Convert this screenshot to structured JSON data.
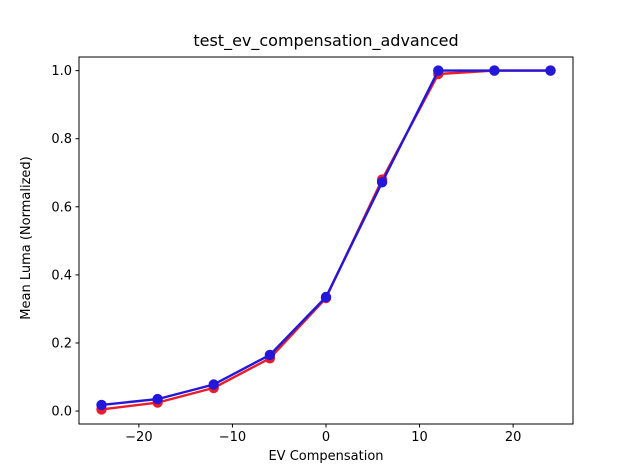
{
  "chart_data": {
    "type": "line",
    "title": "test_ev_compensation_advanced",
    "xlabel": "EV Compensation",
    "ylabel": "Mean Luma (Normalized)",
    "x": [
      -24,
      -18,
      -12,
      -6,
      0,
      6,
      12,
      18,
      24
    ],
    "series": [
      {
        "name": "red-series",
        "color": "#ea1c2c",
        "marker": "circle",
        "values": [
          0.005,
          0.025,
          0.068,
          0.155,
          0.332,
          0.68,
          0.99,
          1.0,
          1.0
        ]
      },
      {
        "name": "blue-series",
        "color": "#2318d9",
        "marker": "circle",
        "values": [
          0.018,
          0.035,
          0.078,
          0.165,
          0.335,
          0.672,
          1.0,
          1.0,
          1.0
        ]
      }
    ],
    "xlim": [
      -26.4,
      26.4
    ],
    "ylim": [
      -0.038,
      1.04
    ],
    "xticks": {
      "values": [
        -20,
        -10,
        0,
        10,
        20
      ],
      "labels": [
        "−20",
        "−10",
        "0",
        "10",
        "20"
      ]
    },
    "yticks": {
      "values": [
        0.0,
        0.2,
        0.4,
        0.6,
        0.8,
        1.0
      ],
      "labels": [
        "0.0",
        "0.2",
        "0.4",
        "0.6",
        "0.8",
        "1.0"
      ]
    },
    "grid": false,
    "legend": "none",
    "colors": {
      "axis": "#000000",
      "background": "#ffffff"
    }
  }
}
